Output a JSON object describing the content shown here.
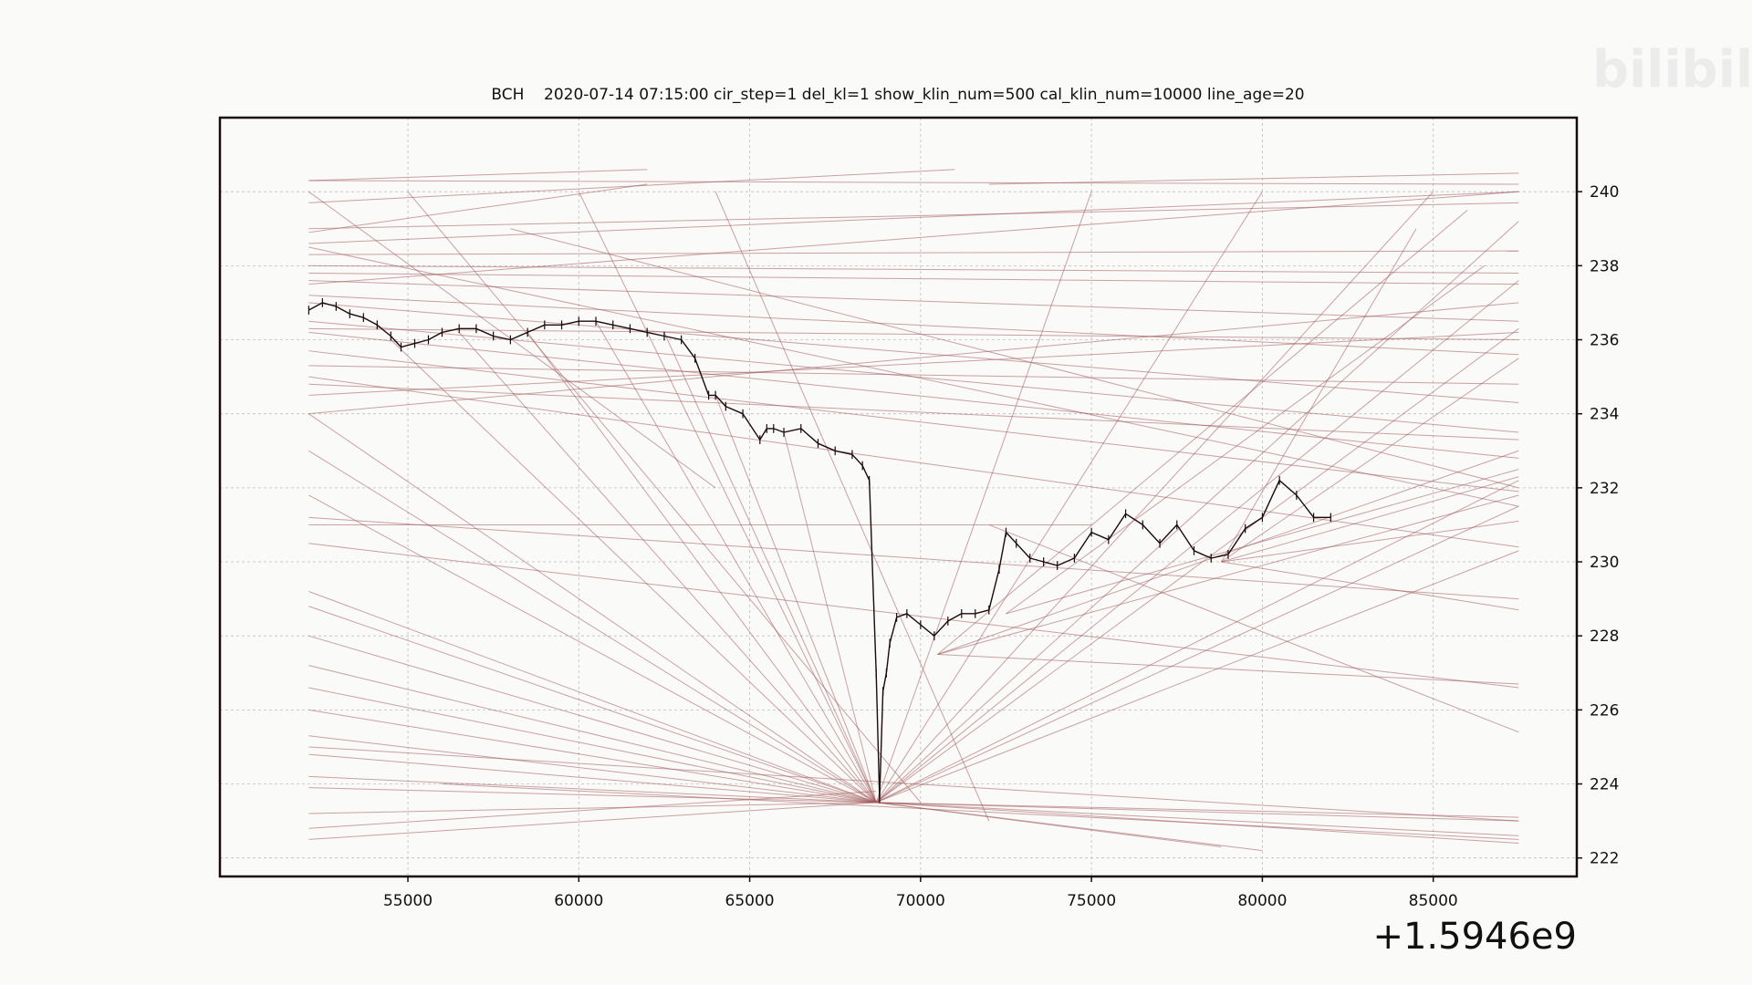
{
  "watermark": {
    "text": "bilibili",
    "color": "#e8e8e8"
  },
  "chart_data": {
    "type": "line",
    "title": "BCH    2020-07-14 07:15:00 cir_step=1 del_kl=1 show_klin_num=500 cal_klin_num=10000 line_age=20",
    "xlabel": "",
    "ylabel": "",
    "x_offset_label": "+1.5946e9",
    "x_offset_value": 1594600000,
    "xlim": [
      49500,
      89200
    ],
    "ylim": [
      221.5,
      242.0
    ],
    "y_axis_side": "right",
    "grid": true,
    "colors": {
      "price": "#1a0a0a",
      "trend_lines": "#a0585a",
      "grid": "#bdbdbd",
      "frame": "#1a0a0a"
    },
    "x_ticks": [
      55000,
      60000,
      65000,
      70000,
      75000,
      80000,
      85000
    ],
    "x_tick_labels": [
      "55000",
      "60000",
      "65000",
      "70000",
      "75000",
      "80000",
      "85000"
    ],
    "y_ticks": [
      222,
      224,
      226,
      228,
      230,
      232,
      234,
      236,
      238,
      240
    ],
    "y_tick_labels": [
      "222",
      "224",
      "226",
      "228",
      "230",
      "232",
      "234",
      "236",
      "238",
      "240"
    ],
    "series": [
      {
        "type": "line",
        "x": [
          52100,
          52500,
          52900,
          53300,
          53700,
          54100,
          54500,
          54800,
          55200,
          55600,
          56000,
          56500,
          57000,
          57500,
          58000,
          58500,
          59000,
          59500,
          60000,
          60500,
          61000,
          61500,
          62000,
          62500,
          63000,
          63400,
          63800,
          64000,
          64300,
          64800,
          65300,
          65500,
          65700,
          66000,
          66500,
          67000,
          67500,
          68000,
          68300,
          68500,
          68700,
          68800,
          68900,
          69000,
          69100,
          69300,
          69600,
          70000,
          70400,
          70800,
          71200,
          71600,
          72000,
          72300,
          72500,
          72800,
          73200,
          73600,
          74000,
          74500,
          75000,
          75500,
          76000,
          76500,
          77000,
          77500,
          78000,
          78500,
          79000,
          79500,
          80000,
          80500,
          81000,
          81500,
          82000
        ],
        "y": [
          236.8,
          237.0,
          236.9,
          236.7,
          236.6,
          236.4,
          236.1,
          235.8,
          235.9,
          236.0,
          236.2,
          236.3,
          236.3,
          236.1,
          236.0,
          236.2,
          236.4,
          236.4,
          236.5,
          236.5,
          236.4,
          236.3,
          236.2,
          236.1,
          236.0,
          235.5,
          234.5,
          234.5,
          234.2,
          234.0,
          233.3,
          233.6,
          233.6,
          233.5,
          233.6,
          233.2,
          233.0,
          232.9,
          232.6,
          232.2,
          227.0,
          223.6,
          226.5,
          227.0,
          227.8,
          228.5,
          228.6,
          228.3,
          228.0,
          228.4,
          228.6,
          228.6,
          228.7,
          229.8,
          230.8,
          230.5,
          230.1,
          230.0,
          229.9,
          230.1,
          230.8,
          230.6,
          231.3,
          231.0,
          230.5,
          231.0,
          230.3,
          230.1,
          230.2,
          230.9,
          231.2,
          232.2,
          231.8,
          231.2,
          231.2
        ]
      }
    ],
    "trend_lines": [
      [
        52100,
        240.3,
        87500,
        240.2
      ],
      [
        52100,
        239.0,
        87500,
        239.7
      ],
      [
        52100,
        238.6,
        87500,
        240.0
      ],
      [
        52100,
        238.3,
        87500,
        238.4
      ],
      [
        52100,
        238.0,
        87500,
        237.8
      ],
      [
        52100,
        237.6,
        87500,
        236.5
      ],
      [
        52100,
        237.2,
        87500,
        235.6
      ],
      [
        52100,
        237.0,
        87500,
        234.3
      ],
      [
        52100,
        236.5,
        87500,
        233.5
      ],
      [
        52100,
        236.2,
        87500,
        232.8
      ],
      [
        52100,
        235.7,
        87500,
        231.9
      ],
      [
        52100,
        235.0,
        87500,
        230.4
      ],
      [
        52100,
        234.5,
        87500,
        236.2
      ],
      [
        52100,
        234.0,
        87500,
        237.0
      ],
      [
        52100,
        231.2,
        87500,
        229.0
      ],
      [
        52100,
        230.5,
        87500,
        226.6
      ],
      [
        52100,
        229.2,
        68700,
        223.5
      ],
      [
        52100,
        228.8,
        68700,
        223.5
      ],
      [
        52100,
        228.0,
        68700,
        223.5
      ],
      [
        52100,
        227.2,
        68700,
        223.5
      ],
      [
        52100,
        226.6,
        68700,
        223.5
      ],
      [
        52100,
        226.0,
        68700,
        223.5
      ],
      [
        52100,
        225.3,
        68700,
        223.5
      ],
      [
        52100,
        224.8,
        68700,
        223.5
      ],
      [
        52100,
        224.2,
        68700,
        223.5
      ],
      [
        52100,
        223.9,
        68700,
        223.5
      ],
      [
        52100,
        223.2,
        68700,
        223.5
      ],
      [
        52100,
        222.5,
        68700,
        223.5
      ],
      [
        52100,
        234.0,
        68700,
        223.5
      ],
      [
        52100,
        233.0,
        68700,
        223.5
      ],
      [
        52100,
        231.8,
        68700,
        223.5
      ],
      [
        54500,
        236.0,
        68700,
        223.5
      ],
      [
        56500,
        236.2,
        68700,
        223.5
      ],
      [
        58500,
        236.2,
        68700,
        223.5
      ],
      [
        60500,
        236.5,
        68700,
        223.5
      ],
      [
        62500,
        236.2,
        68700,
        223.5
      ],
      [
        64000,
        234.5,
        68700,
        223.5
      ],
      [
        66000,
        233.5,
        68700,
        223.5
      ],
      [
        68700,
        223.5,
        87500,
        223.0
      ],
      [
        68700,
        223.5,
        87500,
        222.6
      ],
      [
        68700,
        223.5,
        87500,
        222.4
      ],
      [
        68700,
        223.5,
        87500,
        223.1
      ],
      [
        68700,
        223.5,
        87500,
        232.2
      ],
      [
        68700,
        223.5,
        87500,
        231.5
      ],
      [
        68700,
        223.5,
        87500,
        230.3
      ],
      [
        68700,
        223.5,
        87500,
        237.6
      ],
      [
        68700,
        223.5,
        87500,
        239.2
      ],
      [
        68700,
        223.5,
        87500,
        236.3
      ],
      [
        68700,
        223.5,
        78800,
        222.3
      ],
      [
        68700,
        223.5,
        80000,
        222.2
      ],
      [
        70500,
        227.5,
        87500,
        231.8
      ],
      [
        70500,
        227.5,
        87500,
        233.0
      ],
      [
        70500,
        227.5,
        87500,
        226.7
      ],
      [
        72000,
        231.0,
        87500,
        225.4
      ],
      [
        72500,
        228.6,
        87500,
        232.5
      ],
      [
        78800,
        230.0,
        87500,
        232.3
      ],
      [
        78800,
        230.0,
        87500,
        228.7
      ],
      [
        78800,
        230.0,
        87500,
        231.1
      ],
      [
        78800,
        230.0,
        87500,
        235.5
      ],
      [
        78800,
        230.0,
        84500,
        239.0
      ],
      [
        52100,
        240.3,
        62000,
        240.6
      ],
      [
        52100,
        239.7,
        71000,
        240.6
      ],
      [
        72000,
        240.2,
        87500,
        240.5
      ],
      [
        52100,
        238.9,
        62000,
        240.2
      ],
      [
        52100,
        238.5,
        87500,
        231.5
      ],
      [
        58000,
        239.0,
        87500,
        232.0
      ],
      [
        52100,
        237.8,
        87500,
        237.5
      ],
      [
        52100,
        236.3,
        87500,
        236.0
      ],
      [
        52100,
        235.3,
        87500,
        234.8
      ],
      [
        52100,
        234.8,
        87500,
        233.3
      ],
      [
        52100,
        225.0,
        87500,
        223.0
      ],
      [
        52100,
        222.8,
        68700,
        223.8
      ],
      [
        56000,
        224.0,
        87500,
        222.5
      ],
      [
        52100,
        231.0,
        75000,
        231.0
      ],
      [
        52100,
        237.5,
        87500,
        240.0
      ],
      [
        52100,
        240.0,
        64000,
        232.0
      ],
      [
        55000,
        240.0,
        70000,
        223.5
      ],
      [
        60000,
        240.0,
        68700,
        223.5
      ],
      [
        64000,
        240.0,
        72000,
        223.0
      ],
      [
        75000,
        240.0,
        68700,
        223.5
      ],
      [
        80000,
        240.0,
        68700,
        223.5
      ],
      [
        85000,
        240.0,
        68700,
        223.5
      ],
      [
        86000,
        239.5,
        70500,
        227.5
      ],
      [
        86500,
        238.0,
        72500,
        228.6
      ]
    ]
  }
}
